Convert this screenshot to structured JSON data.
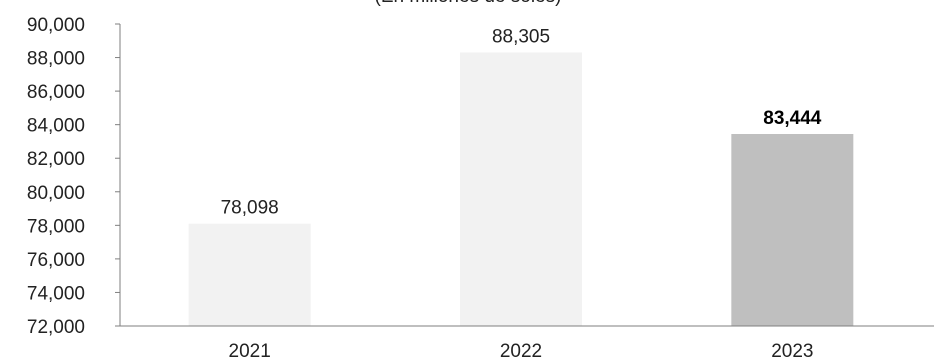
{
  "chart_data": {
    "type": "bar",
    "subtitle": "(En millones de soles)",
    "categories": [
      "2021",
      "2022",
      "2023"
    ],
    "values": [
      78098,
      88305,
      83444
    ],
    "data_labels": [
      "78,098",
      "88,305",
      "83,444"
    ],
    "ylim": [
      72000,
      90000
    ],
    "yticks": [
      72000,
      74000,
      76000,
      78000,
      80000,
      82000,
      84000,
      86000,
      88000,
      90000
    ],
    "ytick_labels": [
      "72,000",
      "74,000",
      "76,000",
      "78,000",
      "80,000",
      "82,000",
      "84,000",
      "86,000",
      "88,000",
      "90,000"
    ],
    "bar_colors": [
      "#f2f2f2",
      "#f2f2f2",
      "#bfbfbf"
    ],
    "bold_label_index": 2,
    "grid": false,
    "legend": "none"
  }
}
